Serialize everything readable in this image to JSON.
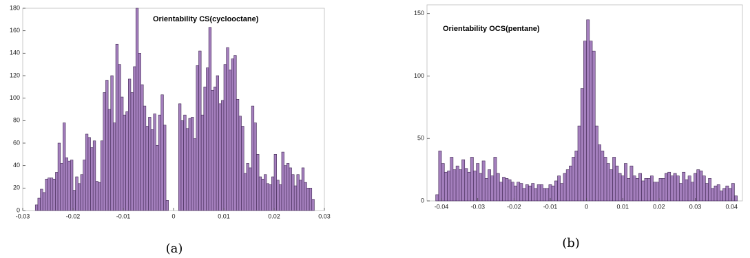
{
  "chart_data": [
    {
      "type": "histogram",
      "title": "Orientability CS(cyclooctane)",
      "caption": "(a)",
      "color": "#a47fbd",
      "edgecolor": "#3f2752",
      "bins": [
        -0.0275,
        -0.027,
        -0.0265,
        -0.026,
        -0.0255,
        -0.025,
        -0.0245,
        -0.024,
        -0.0235,
        -0.023,
        -0.0225,
        -0.022,
        -0.0215,
        -0.021,
        -0.0205,
        -0.02,
        -0.0195,
        -0.019,
        -0.0185,
        -0.018,
        -0.0175,
        -0.017,
        -0.0165,
        -0.016,
        -0.0155,
        -0.015,
        -0.0145,
        -0.014,
        -0.0135,
        -0.013,
        -0.0125,
        -0.012,
        -0.0115,
        -0.011,
        -0.0105,
        -0.01,
        -0.0095,
        -0.009,
        -0.0085,
        -0.008,
        -0.0075,
        -0.007,
        -0.0065,
        -0.006,
        -0.0055,
        -0.005,
        -0.0045,
        -0.004,
        -0.0035,
        -0.003,
        -0.0025,
        -0.002,
        -0.0015,
        -0.001,
        -0.0005,
        0,
        0.0005,
        0.001,
        0.0015,
        0.002,
        0.0025,
        0.003,
        0.0035,
        0.004,
        0.0045,
        0.005,
        0.0055,
        0.006,
        0.0065,
        0.007,
        0.0075,
        0.008,
        0.0085,
        0.009,
        0.0095,
        0.01,
        0.0105,
        0.011,
        0.0115,
        0.012,
        0.0125,
        0.013,
        0.0135,
        0.014,
        0.0145,
        0.015,
        0.0155,
        0.016,
        0.0165,
        0.017,
        0.0175,
        0.018,
        0.0185,
        0.019,
        0.0195,
        0.02,
        0.0205,
        0.021,
        0.0215,
        0.022,
        0.0225,
        0.023,
        0.0235,
        0.024,
        0.0245,
        0.025,
        0.0255,
        0.026,
        0.0265,
        0.027,
        0.0275,
        0.028
      ],
      "values": [
        5,
        11,
        19,
        16,
        28,
        29,
        29,
        28,
        34,
        60,
        42,
        78,
        47,
        44,
        45,
        18,
        30,
        24,
        32,
        45,
        68,
        65,
        56,
        62,
        26,
        25,
        62,
        105,
        116,
        90,
        120,
        78,
        148,
        130,
        101,
        85,
        88,
        117,
        105,
        128,
        180,
        140,
        112,
        93,
        75,
        83,
        72,
        86,
        58,
        85,
        103,
        76,
        9,
        0,
        0,
        0,
        0,
        95,
        80,
        85,
        73,
        82,
        83,
        64,
        129,
        142,
        85,
        110,
        127,
        163,
        107,
        110,
        120,
        95,
        98,
        130,
        145,
        125,
        135,
        138,
        99,
        84,
        75,
        33,
        42,
        38,
        93,
        78,
        50,
        30,
        28,
        32,
        24,
        23,
        30,
        50,
        27,
        23,
        52,
        40,
        42,
        38,
        32,
        22,
        32,
        27,
        38,
        25,
        20,
        20,
        10
      ],
      "xlim": [
        -0.03,
        0.03
      ],
      "xticks": [
        -0.03,
        -0.02,
        -0.01,
        0,
        0.01,
        0.02,
        0.03
      ],
      "ylim": [
        0,
        180
      ],
      "yticks": [
        0,
        20,
        40,
        60,
        80,
        100,
        120,
        140,
        160,
        180
      ]
    },
    {
      "type": "histogram",
      "title": "Orientability OCS(pentane)",
      "caption": "(b)",
      "color": "#a47fbd",
      "edgecolor": "#3f2752",
      "bins": [
        -0.0416,
        -0.0408,
        -0.04,
        -0.0392,
        -0.0384,
        -0.0376,
        -0.0368,
        -0.036,
        -0.0352,
        -0.0344,
        -0.0336,
        -0.0328,
        -0.032,
        -0.0312,
        -0.0304,
        -0.0296,
        -0.0288,
        -0.028,
        -0.0272,
        -0.0264,
        -0.0256,
        -0.0248,
        -0.024,
        -0.0232,
        -0.0224,
        -0.0216,
        -0.0208,
        -0.02,
        -0.0192,
        -0.0184,
        -0.0176,
        -0.0168,
        -0.016,
        -0.0152,
        -0.0144,
        -0.0136,
        -0.0128,
        -0.012,
        -0.0112,
        -0.0104,
        -0.0096,
        -0.0088,
        -0.008,
        -0.0072,
        -0.0064,
        -0.0056,
        -0.0048,
        -0.004,
        -0.0032,
        -0.0024,
        -0.0016,
        -0.0008,
        0,
        0.0008,
        0.0016,
        0.0024,
        0.0032,
        0.004,
        0.0048,
        0.0056,
        0.0064,
        0.0072,
        0.008,
        0.0088,
        0.0096,
        0.0104,
        0.0112,
        0.012,
        0.0128,
        0.0136,
        0.0144,
        0.0152,
        0.016,
        0.0168,
        0.0176,
        0.0184,
        0.0192,
        0.02,
        0.0208,
        0.0216,
        0.0224,
        0.0232,
        0.024,
        0.0248,
        0.0256,
        0.0264,
        0.0272,
        0.028,
        0.0288,
        0.0296,
        0.0304,
        0.0312,
        0.032,
        0.0328,
        0.0336,
        0.0344,
        0.0352,
        0.036,
        0.0368,
        0.0376,
        0.0384,
        0.0392,
        0.04,
        0.0408,
        0.0416
      ],
      "values": [
        5,
        40,
        30,
        23,
        24,
        35,
        25,
        28,
        25,
        33,
        26,
        23,
        35,
        24,
        30,
        22,
        32,
        18,
        25,
        20,
        35,
        22,
        15,
        19,
        18,
        17,
        15,
        12,
        15,
        14,
        10,
        13,
        12,
        14,
        10,
        13,
        13,
        10,
        10,
        13,
        12,
        16,
        20,
        14,
        22,
        25,
        28,
        35,
        40,
        60,
        90,
        128,
        145,
        128,
        120,
        60,
        45,
        40,
        35,
        30,
        25,
        35,
        28,
        22,
        20,
        30,
        18,
        28,
        20,
        18,
        22,
        16,
        18,
        18,
        20,
        15,
        15,
        18,
        18,
        22,
        23,
        20,
        22,
        20,
        14,
        23,
        17,
        20,
        15,
        22,
        25,
        24,
        20,
        14,
        18,
        10,
        12,
        13,
        8,
        10,
        12,
        10,
        14,
        4
      ],
      "xlim": [
        -0.044,
        0.043
      ],
      "xticks": [
        -0.04,
        -0.03,
        -0.02,
        -0.01,
        0,
        0.01,
        0.02,
        0.03,
        0.04
      ],
      "ylim": [
        0,
        157
      ],
      "yticks": [
        0,
        50,
        100,
        150
      ]
    }
  ]
}
